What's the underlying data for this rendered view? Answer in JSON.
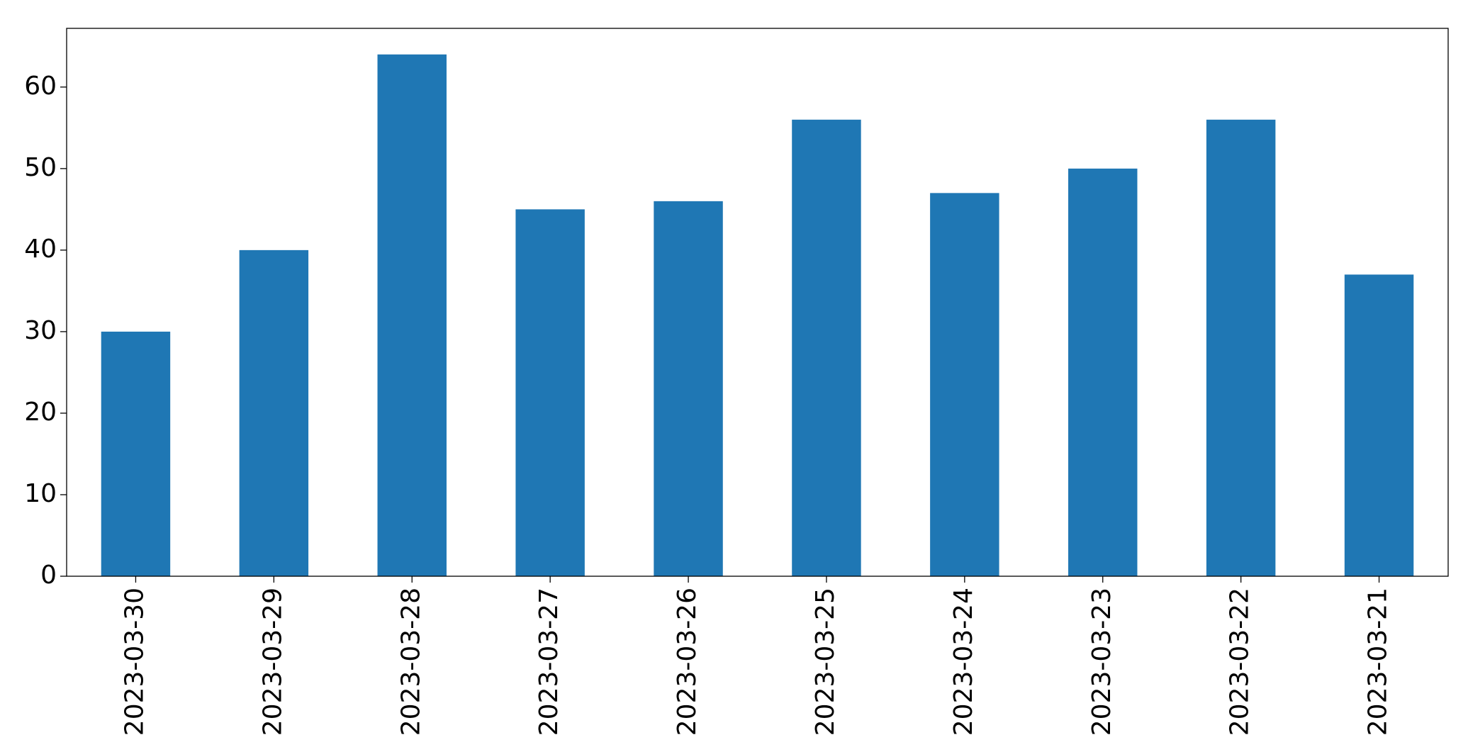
{
  "chart_data": {
    "type": "bar",
    "categories": [
      "2023-03-30",
      "2023-03-29",
      "2023-03-28",
      "2023-03-27",
      "2023-03-26",
      "2023-03-25",
      "2023-03-24",
      "2023-03-23",
      "2023-03-22",
      "2023-03-21"
    ],
    "values": [
      30,
      40,
      64,
      45,
      46,
      56,
      47,
      50,
      56,
      37
    ],
    "color": "#1f77b4",
    "ylim": [
      0,
      67.2
    ],
    "yticks": [
      0,
      10,
      20,
      30,
      40,
      50,
      60
    ],
    "grid": false
  }
}
